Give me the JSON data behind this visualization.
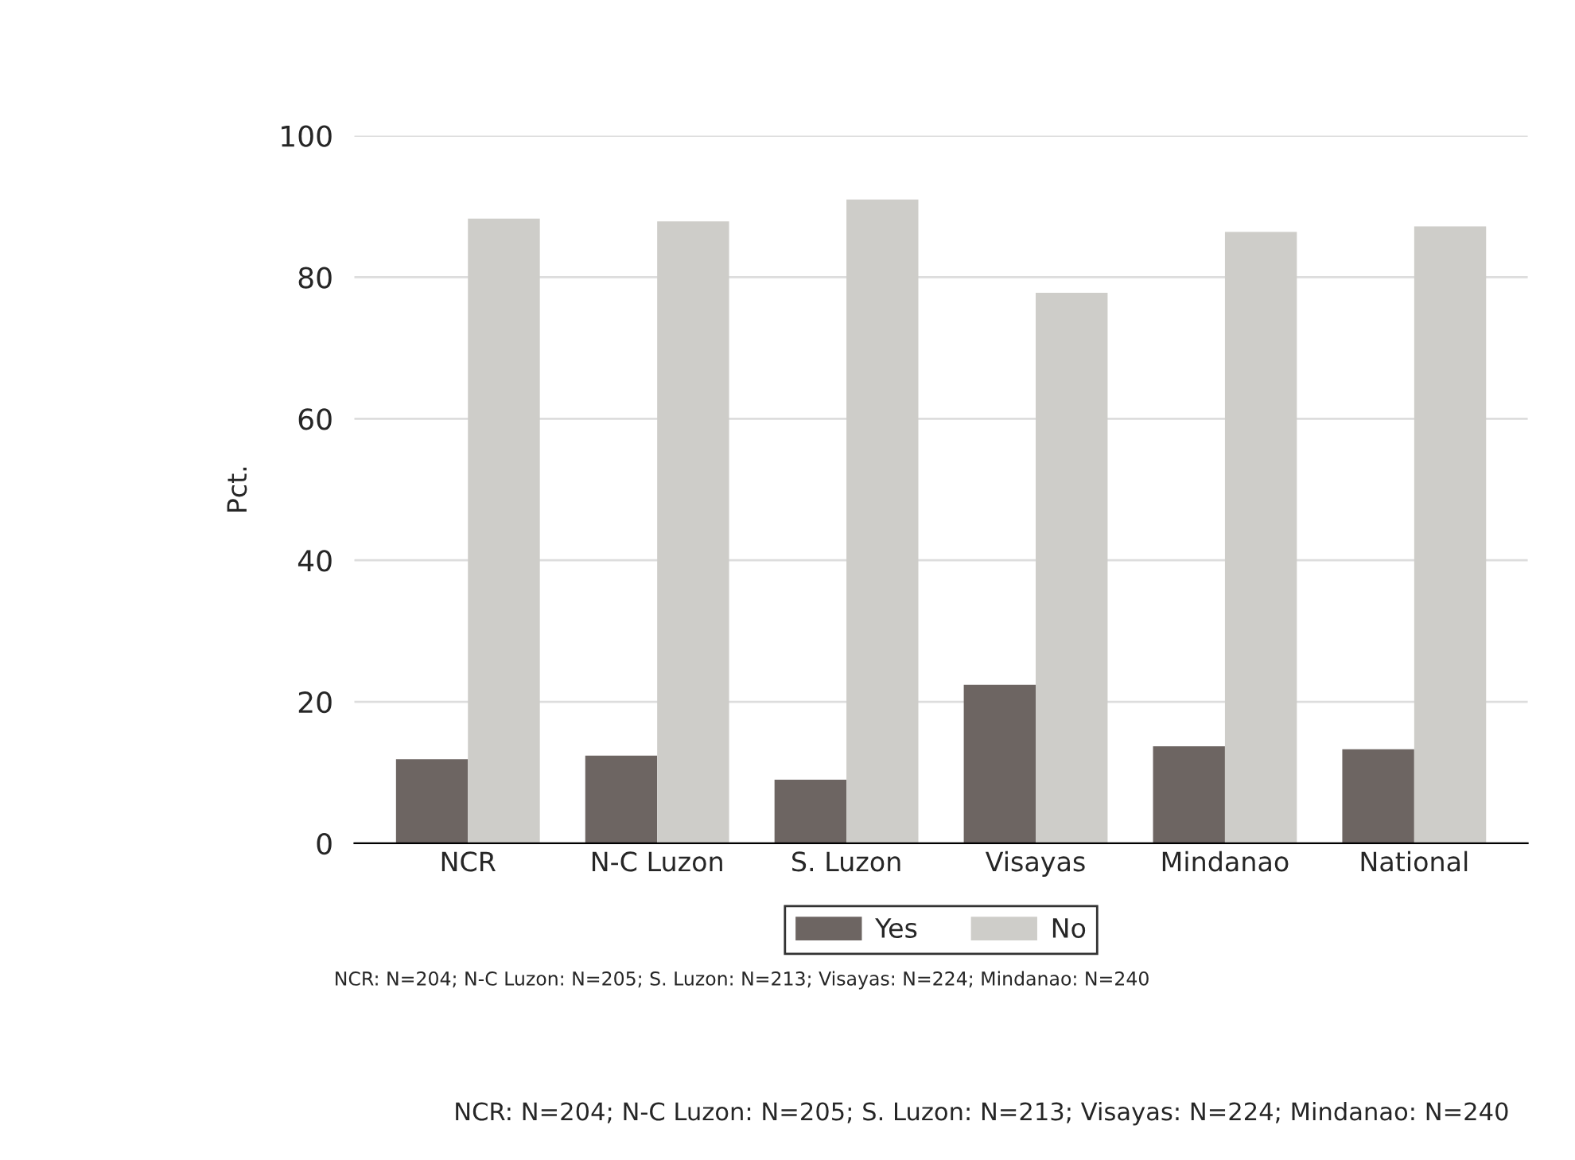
{
  "chart_data": {
    "type": "bar",
    "ylabel": "Pct.",
    "categories": [
      "NCR",
      "N-C Luzon",
      "S. Luzon",
      "Visayas",
      "Mindanao",
      "National"
    ],
    "series": [
      {
        "name": "Yes",
        "color": "#6d6562",
        "values": [
          11.9,
          12.4,
          9.0,
          22.4,
          13.7,
          13.3
        ]
      },
      {
        "name": "No",
        "color": "#cecdc9",
        "values": [
          88.3,
          87.9,
          91.0,
          77.8,
          86.4,
          87.2
        ]
      }
    ],
    "ylim": [
      0,
      100
    ],
    "yticks": [
      0,
      20,
      40,
      60,
      80,
      100
    ],
    "grid": "y",
    "legend": "bottom",
    "annotations": [
      "NCR: N=204; N-C Luzon: N=205; S. Luzon: N=213; Visayas: N=224; Mindanao: N=240",
      "NCR: N=204; N-C Luzon: N=205; S. Luzon: N=213; Visayas: N=224; Mindanao: N=240"
    ]
  }
}
